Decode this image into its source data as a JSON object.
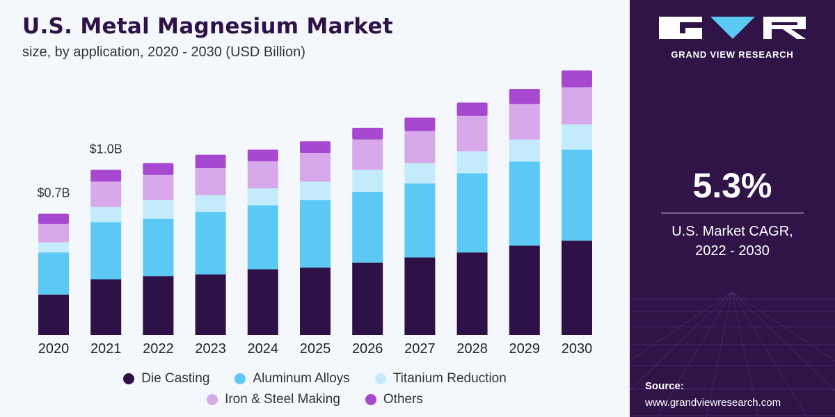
{
  "title": "U.S. Metal Magnesium Market",
  "subtitle": "size, by application, 2020 - 2030 (USD Billion)",
  "colors": {
    "die_casting": "#2e1147",
    "aluminum_alloys": "#5cc9f5",
    "titanium_reduction": "#c4ebfb",
    "iron_steel": "#d7a9ea",
    "others": "#a649d0",
    "panel": "#301448"
  },
  "chart_data": {
    "type": "bar",
    "stacked": true,
    "categories": [
      "2020",
      "2021",
      "2022",
      "2023",
      "2024",
      "2025",
      "2026",
      "2027",
      "2028",
      "2029",
      "2030"
    ],
    "series": [
      {
        "name": "Die Casting",
        "color": "#2e1147",
        "values": [
          0.24,
          0.33,
          0.35,
          0.36,
          0.39,
          0.4,
          0.43,
          0.46,
          0.49,
          0.53,
          0.56
        ]
      },
      {
        "name": "Aluminum Alloys",
        "color": "#5cc9f5",
        "values": [
          0.25,
          0.34,
          0.34,
          0.37,
          0.38,
          0.4,
          0.42,
          0.44,
          0.47,
          0.5,
          0.54
        ]
      },
      {
        "name": "Titanium Reduction",
        "color": "#c4ebfb",
        "values": [
          0.06,
          0.09,
          0.11,
          0.1,
          0.1,
          0.11,
          0.13,
          0.12,
          0.13,
          0.13,
          0.15
        ]
      },
      {
        "name": "Iron & Steel Making",
        "color": "#d7a9ea",
        "values": [
          0.11,
          0.15,
          0.15,
          0.16,
          0.16,
          0.17,
          0.18,
          0.19,
          0.21,
          0.21,
          0.22
        ]
      },
      {
        "name": "Others",
        "color": "#a649d0",
        "values": [
          0.06,
          0.07,
          0.07,
          0.08,
          0.07,
          0.07,
          0.07,
          0.08,
          0.08,
          0.09,
          0.1
        ]
      }
    ],
    "data_labels": [
      {
        "category": "2020",
        "text": "$0.7B"
      },
      {
        "category": "2021",
        "text": "$1.0B"
      }
    ],
    "ylim": [
      0,
      1.65
    ],
    "grid": false,
    "legend_position": "bottom"
  },
  "legend": {
    "row1": [
      {
        "label": "Die Casting",
        "color": "#2e1147"
      },
      {
        "label": "Aluminum Alloys",
        "color": "#5cc9f5"
      },
      {
        "label": "Titanium Reduction",
        "color": "#c4ebfb"
      }
    ],
    "row2": [
      {
        "label": "Iron & Steel Making",
        "color": "#d7a9ea"
      },
      {
        "label": "Others",
        "color": "#a649d0"
      }
    ]
  },
  "brand": {
    "name": "GRAND VIEW RESEARCH",
    "logo_icon": "gvr-logo-icon"
  },
  "cagr": {
    "value": "5.3%",
    "label_line1": "U.S. Market CAGR,",
    "label_line2": "2022 - 2030"
  },
  "source": {
    "label": "Source:",
    "url": "www.grandviewresearch.com"
  }
}
